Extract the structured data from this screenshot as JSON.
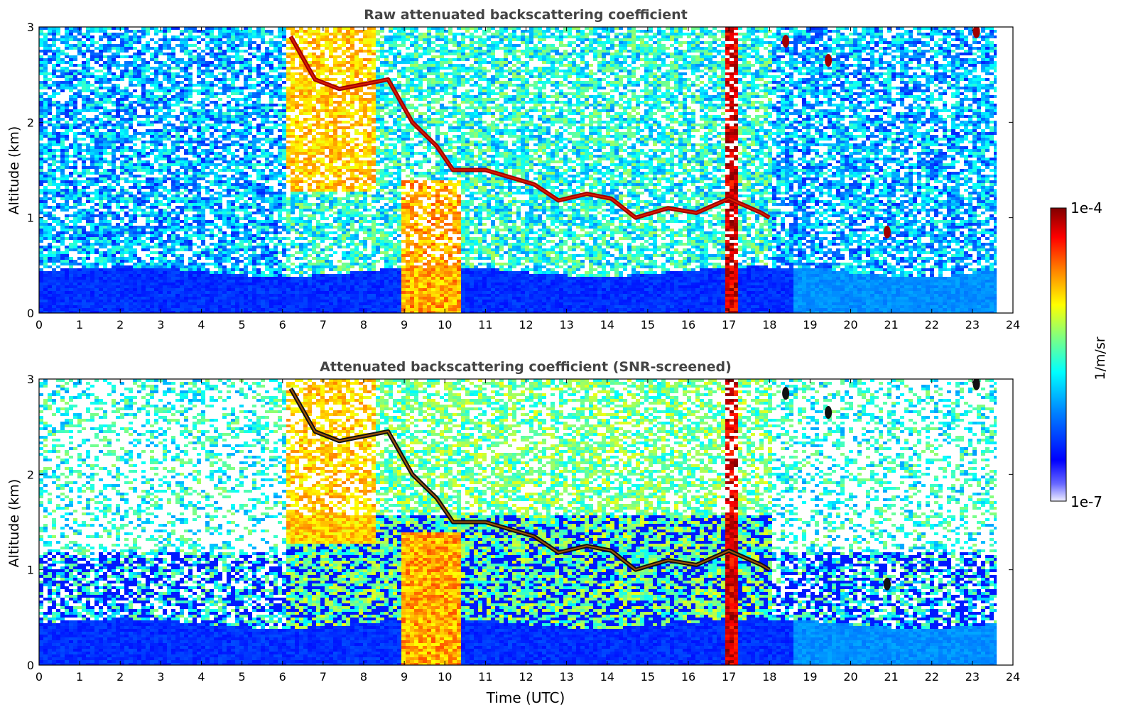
{
  "chart_data": [
    {
      "type": "heatmap",
      "title": "Raw attenuated backscattering coefficient",
      "xlabel": "",
      "ylabel": "Altitude (km)",
      "xlim": [
        0,
        24
      ],
      "ylim": [
        0,
        3
      ],
      "xticks": [
        "0",
        "1",
        "2",
        "3",
        "4",
        "5",
        "6",
        "7",
        "8",
        "9",
        "10",
        "11",
        "12",
        "13",
        "14",
        "15",
        "16",
        "17",
        "18",
        "19",
        "20",
        "21",
        "22",
        "23",
        "24"
      ],
      "yticks": [
        "0",
        "1",
        "2",
        "3"
      ],
      "features": [
        {
          "kind": "aerosol_layer",
          "x": [
            0,
            23.6
          ],
          "y_top": 0.45,
          "level": 0.14
        },
        {
          "kind": "rain_column",
          "x": [
            8.9,
            10.3
          ],
          "y": [
            0,
            1.4
          ],
          "level": 0.62
        },
        {
          "kind": "rain_column",
          "x": [
            16.85,
            17.2
          ],
          "y": [
            0,
            3.0
          ],
          "level": 0.82
        },
        {
          "kind": "cloud_base_line",
          "points": [
            [
              6.2,
              2.9
            ],
            [
              6.8,
              2.45
            ],
            [
              7.4,
              2.35
            ],
            [
              8.6,
              2.45
            ],
            [
              9.2,
              2.0
            ],
            [
              9.8,
              1.75
            ],
            [
              10.2,
              1.5
            ],
            [
              11.0,
              1.5
            ],
            [
              12.2,
              1.35
            ],
            [
              12.8,
              1.18
            ],
            [
              13.5,
              1.25
            ],
            [
              14.1,
              1.2
            ],
            [
              14.7,
              1.0
            ],
            [
              15.5,
              1.1
            ],
            [
              16.2,
              1.05
            ],
            [
              17.0,
              1.2
            ],
            [
              17.8,
              1.05
            ],
            [
              18.0,
              1.0
            ]
          ]
        },
        {
          "kind": "cloud_patch",
          "x": 19.45,
          "y": 2.65
        },
        {
          "kind": "cloud_patch",
          "x": 20.9,
          "y": 0.85
        },
        {
          "kind": "cloud_patch",
          "x": 18.4,
          "y": 2.85
        },
        {
          "kind": "cloud_patch",
          "x": 23.1,
          "y": 2.95
        }
      ]
    },
    {
      "type": "heatmap",
      "title": "Attenuated backscattering coefficient (SNR-screened)",
      "xlabel": "Time (UTC)",
      "ylabel": "Altitude (km)",
      "xlim": [
        0,
        24
      ],
      "ylim": [
        0,
        3
      ],
      "xticks": [
        "0",
        "1",
        "2",
        "3",
        "4",
        "5",
        "6",
        "7",
        "8",
        "9",
        "10",
        "11",
        "12",
        "13",
        "14",
        "15",
        "16",
        "17",
        "18",
        "19",
        "20",
        "21",
        "22",
        "23",
        "24"
      ],
      "yticks": [
        "0",
        "1",
        "2",
        "3"
      ],
      "features": [
        {
          "kind": "aerosol_layer",
          "x": [
            0,
            23.6
          ],
          "y_top": 0.45,
          "level": 0.14
        },
        {
          "kind": "rain_column",
          "x": [
            8.9,
            10.3
          ],
          "y": [
            0,
            1.4
          ],
          "level": 0.62
        },
        {
          "kind": "rain_column",
          "x": [
            16.85,
            17.2
          ],
          "y": [
            0,
            3.0
          ],
          "level": 0.82
        },
        {
          "kind": "cloud_base_line",
          "points": [
            [
              6.2,
              2.9
            ],
            [
              6.8,
              2.45
            ],
            [
              7.4,
              2.35
            ],
            [
              8.6,
              2.45
            ],
            [
              9.2,
              2.0
            ],
            [
              9.8,
              1.75
            ],
            [
              10.2,
              1.5
            ],
            [
              11.0,
              1.5
            ],
            [
              12.2,
              1.35
            ],
            [
              12.8,
              1.18
            ],
            [
              13.5,
              1.25
            ],
            [
              14.1,
              1.2
            ],
            [
              14.7,
              1.0
            ],
            [
              15.5,
              1.1
            ],
            [
              16.2,
              1.05
            ],
            [
              17.0,
              1.2
            ],
            [
              17.8,
              1.05
            ],
            [
              18.0,
              1.0
            ]
          ]
        },
        {
          "kind": "cloud_patch",
          "x": 19.45,
          "y": 2.65
        },
        {
          "kind": "cloud_patch",
          "x": 20.9,
          "y": 0.85
        },
        {
          "kind": "cloud_patch",
          "x": 18.4,
          "y": 2.85
        },
        {
          "kind": "cloud_patch",
          "x": 23.1,
          "y": 2.95
        }
      ]
    }
  ],
  "colorbar": {
    "label": "1/m/sr",
    "max_label": "1e-4",
    "min_label": "1e-7",
    "colormap": [
      "#eeeeff",
      "#0000ff",
      "#0080ff",
      "#00ffff",
      "#80ff80",
      "#ffff00",
      "#ff8000",
      "#ff0000",
      "#800000"
    ]
  },
  "colors": {
    "background_noise": "#1f6fd8",
    "aerosol": "#0a2dff",
    "rain": "#ff7a00",
    "cloud_raw": "#a00000",
    "cloud_screened": "#111111",
    "screened_blank": "#ffffff",
    "axis": "#000000",
    "title": "#444444"
  }
}
